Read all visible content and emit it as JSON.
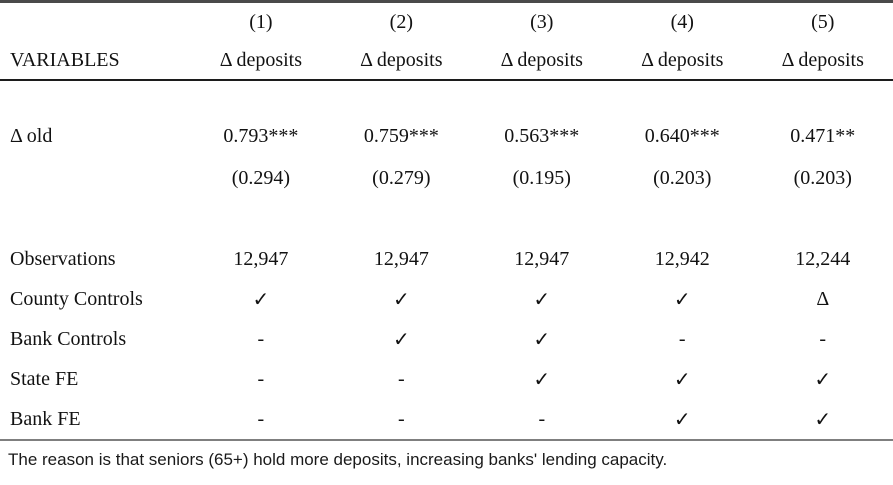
{
  "table": {
    "corner_label": "",
    "column_numbers": [
      "(1)",
      "(2)",
      "(3)",
      "(4)",
      "(5)"
    ],
    "variables_label": "VARIABLES",
    "dep_var_headers": [
      "Δ deposits",
      "Δ deposits",
      "Δ deposits",
      "Δ deposits",
      "Δ deposits"
    ],
    "rows": [
      {
        "label": "Δ old",
        "cells": [
          "0.793***",
          "0.759***",
          "0.563***",
          "0.640***",
          "0.471**"
        ]
      },
      {
        "label": "",
        "cells": [
          "(0.294)",
          "(0.279)",
          "(0.195)",
          "(0.203)",
          "(0.203)"
        ]
      },
      {
        "label": "Observations",
        "cells": [
          "12,947",
          "12,947",
          "12,947",
          "12,942",
          "12,244"
        ]
      },
      {
        "label": "County Controls",
        "cells": [
          "✓",
          "✓",
          "✓",
          "✓",
          "Δ"
        ]
      },
      {
        "label": "Bank Controls",
        "cells": [
          "-",
          "✓",
          "✓",
          "-",
          "-"
        ]
      },
      {
        "label": "State FE",
        "cells": [
          "-",
          "-",
          "✓",
          "✓",
          "✓"
        ]
      },
      {
        "label": "Bank FE",
        "cells": [
          "-",
          "-",
          "-",
          "✓",
          "✓"
        ]
      }
    ]
  },
  "footnote": "The reason is that seniors (65+) hold more deposits, increasing banks' lending capacity."
}
